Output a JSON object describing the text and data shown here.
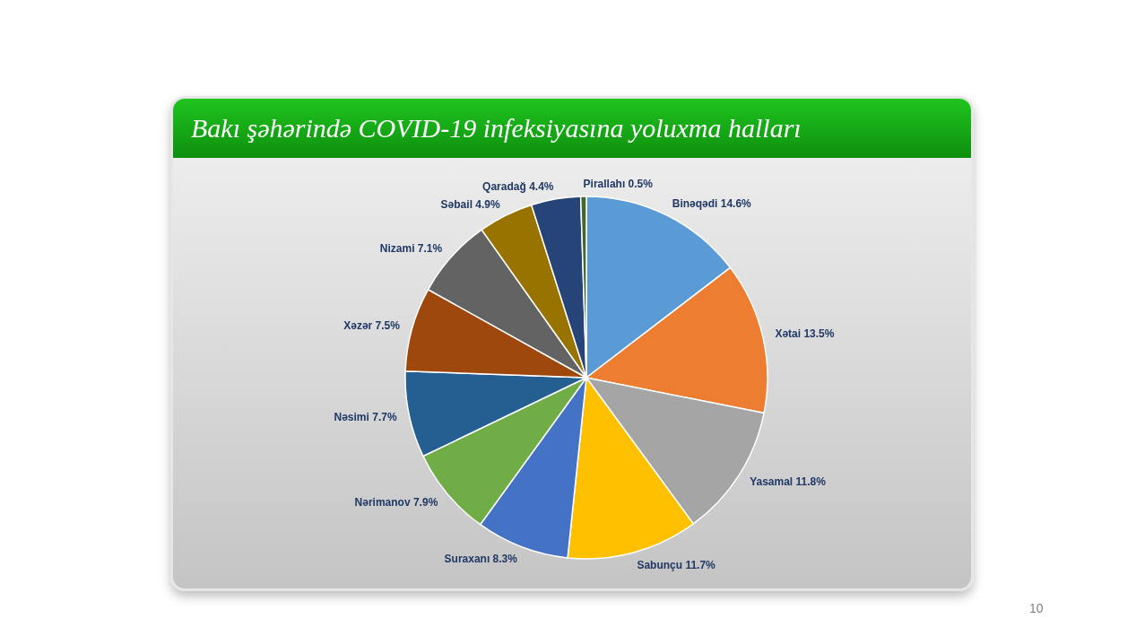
{
  "chart_data": {
    "type": "pie",
    "title": "Bakı şəhərində COVID-19 infeksiyasına yoluxma halları",
    "categories": [
      "Binəqədi",
      "Xətai",
      "Yasamal",
      "Sabunçu",
      "Suraxanı",
      "Nərimanov",
      "Nəsimi",
      "Xəzər",
      "Nizami",
      "Səbail",
      "Qaradağ",
      "Pirallahı"
    ],
    "values": [
      14.6,
      13.5,
      11.8,
      11.7,
      8.3,
      7.9,
      7.7,
      7.5,
      7.1,
      4.9,
      4.4,
      0.5
    ],
    "value_labels": [
      "14.6%",
      "13.5%",
      "11.8%",
      "11.7%",
      "8.3%",
      "7.9%",
      "7.7%",
      "7.5%",
      "7.1%",
      "4.9%",
      "4.4%",
      "0.5%"
    ],
    "colors": [
      "#5b9bd5",
      "#ed7d31",
      "#a5a5a5",
      "#ffc000",
      "#4472c4",
      "#70ad47",
      "#255e91",
      "#9e480e",
      "#636363",
      "#997300",
      "#264478",
      "#43682b"
    ],
    "legend": false,
    "annotations": [
      "10"
    ]
  }
}
